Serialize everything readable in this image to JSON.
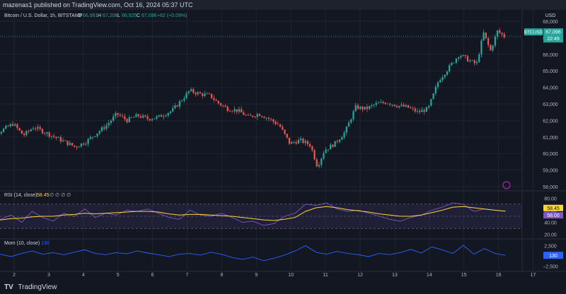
{
  "header": {
    "published": "mazenas1 published on TradingView.com, Oct 16, 2024 05:37 UTC"
  },
  "footer": {
    "logo_text": "TV",
    "brand": "TradingView"
  },
  "colors": {
    "bg": "#131722",
    "up": "#26a69a",
    "down": "#ef5350",
    "rsi": "#7e57c2",
    "rsi_ma": "#fdd835",
    "mom": "#2962ff",
    "grid": "#1f2430"
  },
  "chart_data": [
    {
      "type": "candlestick",
      "title": "Bitcoin / U.S. Dollar, 1h, BITSTAMP",
      "ohlc_label": {
        "o": "O",
        "o_val": "66,991",
        "h": "H",
        "h_val": "67,208",
        "l": "L",
        "l_val": "66,925",
        "c": "C",
        "c_val": "67,096",
        "chg": "+62 (+0.09%)"
      },
      "currency": "USD",
      "last_price": "67,096",
      "countdown": "22:49",
      "symbol_tag": "BTCUSD",
      "y_ticks": [
        "68,000",
        "67,000",
        "66,000",
        "65,000",
        "64,000",
        "63,000",
        "62,000",
        "61,000",
        "60,000",
        "59,000",
        "58,000"
      ],
      "ylim": [
        58000,
        68000
      ],
      "x_ticks": [
        "2",
        "3",
        "4",
        "5",
        "6",
        "7",
        "8",
        "9",
        "10",
        "11",
        "12",
        "13",
        "14",
        "15",
        "16",
        "17"
      ],
      "price_path": [
        [
          1,
          62300
        ],
        [
          1.3,
          61600
        ],
        [
          1.6,
          61300
        ],
        [
          2.0,
          61800
        ],
        [
          2.3,
          61100
        ],
        [
          2.6,
          61600
        ],
        [
          3.0,
          61200
        ],
        [
          3.4,
          60800
        ],
        [
          3.8,
          60400
        ],
        [
          4.1,
          60700
        ],
        [
          4.4,
          61200
        ],
        [
          4.7,
          61700
        ],
        [
          5.0,
          62400
        ],
        [
          5.3,
          62000
        ],
        [
          5.6,
          62300
        ],
        [
          5.9,
          62100
        ],
        [
          6.2,
          62200
        ],
        [
          6.6,
          62600
        ],
        [
          6.9,
          63300
        ],
        [
          7.1,
          63800
        ],
        [
          7.4,
          63600
        ],
        [
          7.7,
          63500
        ],
        [
          7.9,
          63100
        ],
        [
          8.2,
          62700
        ],
        [
          8.5,
          62600
        ],
        [
          8.8,
          62200
        ],
        [
          9.1,
          62400
        ],
        [
          9.4,
          62100
        ],
        [
          9.7,
          61700
        ],
        [
          10.0,
          60600
        ],
        [
          10.3,
          60800
        ],
        [
          10.6,
          60500
        ],
        [
          10.8,
          59200
        ],
        [
          11.0,
          60200
        ],
        [
          11.3,
          60600
        ],
        [
          11.6,
          61300
        ],
        [
          11.9,
          62800
        ],
        [
          12.2,
          62700
        ],
        [
          12.5,
          63000
        ],
        [
          12.8,
          63100
        ],
        [
          13.1,
          62900
        ],
        [
          13.4,
          62800
        ],
        [
          13.7,
          62500
        ],
        [
          14.0,
          62700
        ],
        [
          14.3,
          64400
        ],
        [
          14.6,
          65200
        ],
        [
          14.9,
          66000
        ],
        [
          15.2,
          65600
        ],
        [
          15.4,
          65400
        ],
        [
          15.6,
          67300
        ],
        [
          15.8,
          66200
        ],
        [
          16.0,
          67400
        ],
        [
          16.2,
          67096
        ]
      ]
    },
    {
      "type": "line",
      "title": "RSI (14, close)",
      "value_label": "58.00",
      "values_label": "∅ ∅ ∅ ∅",
      "ma_value": "58.45",
      "rsi_value": "58.00",
      "y_ticks": [
        "80.00",
        "60.00",
        "40.00",
        "20.00"
      ],
      "ylim": [
        15,
        85
      ],
      "bands": {
        "upper": 70,
        "lower": 30
      },
      "series": [
        {
          "name": "RSI",
          "values": [
            30,
            48,
            45,
            52,
            40,
            58,
            48,
            42,
            55,
            50,
            62,
            48,
            55,
            52,
            60,
            58,
            62,
            55,
            48,
            45,
            60,
            52,
            50,
            55,
            48,
            40,
            42,
            35,
            38,
            50,
            55,
            70,
            68,
            72,
            62,
            58,
            60,
            55,
            50,
            45,
            42,
            48,
            52,
            60,
            65,
            72,
            70,
            58,
            62,
            60,
            58
          ]
        },
        {
          "name": "RSI-MA",
          "values": [
            28,
            40,
            44,
            46,
            47,
            49,
            50,
            50,
            52,
            53,
            55,
            54,
            55,
            56,
            57,
            58,
            58,
            57,
            54,
            52,
            53,
            53,
            52,
            51,
            50,
            48,
            46,
            44,
            43,
            45,
            48,
            58,
            64,
            66,
            64,
            61,
            59,
            57,
            54,
            52,
            50,
            50,
            52,
            56,
            60,
            65,
            66,
            64,
            62,
            60,
            58.45
          ]
        }
      ]
    },
    {
      "type": "line",
      "title": "Mom (10, close)",
      "value_label": "130",
      "y_ticks": [
        "2,500",
        "0",
        "−2,500"
      ],
      "ylim": [
        -3500,
        3500
      ],
      "series": [
        {
          "name": "Mom",
          "values": [
            -1500,
            -300,
            400,
            -200,
            600,
            1200,
            400,
            800,
            300,
            900,
            1500,
            600,
            300,
            800,
            500,
            1200,
            700,
            300,
            -200,
            400,
            600,
            200,
            900,
            400,
            -400,
            -900,
            -300,
            -1200,
            -600,
            200,
            1200,
            2500,
            900,
            400,
            1100,
            600,
            300,
            -200,
            600,
            300,
            800,
            1600,
            700,
            2200,
            1500,
            600,
            2600,
            400,
            1800,
            600,
            130
          ]
        }
      ]
    }
  ]
}
